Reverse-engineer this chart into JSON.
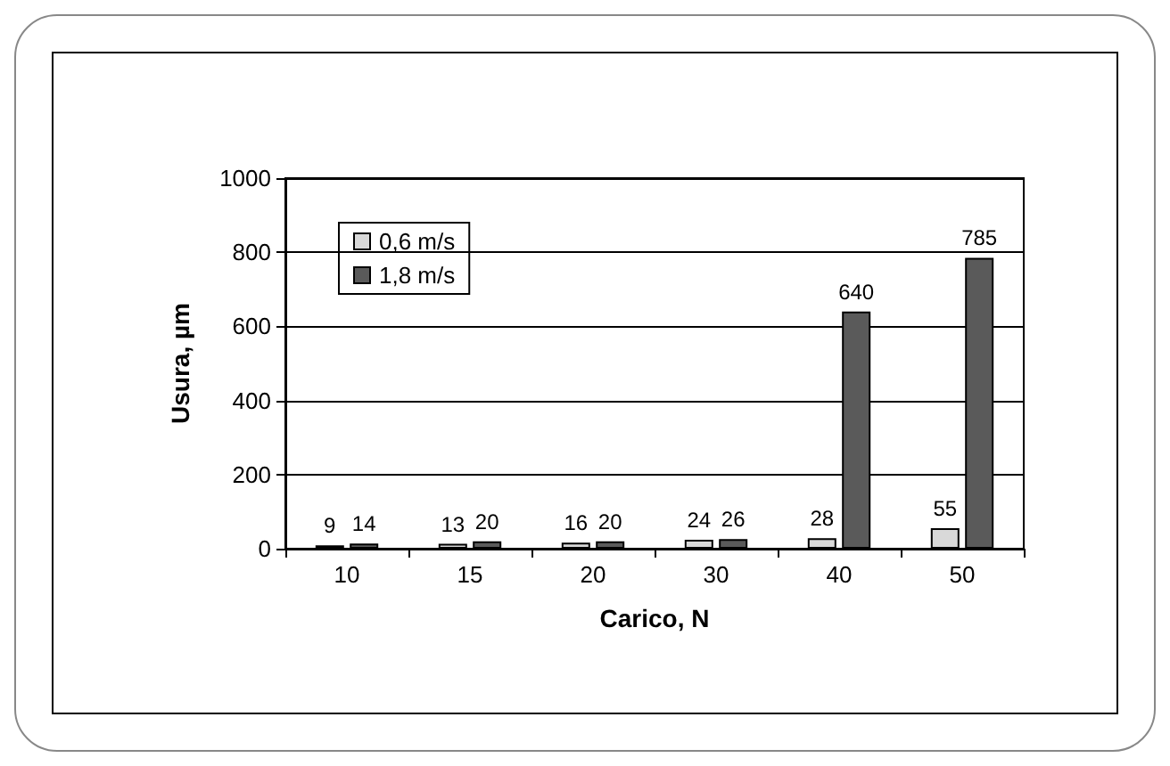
{
  "chart_data": {
    "type": "bar",
    "xlabel": "Carico, N",
    "ylabel": "Usura, µm",
    "categories": [
      "10",
      "15",
      "20",
      "30",
      "40",
      "50"
    ],
    "series": [
      {
        "name": "0,6 m/s",
        "color": "#d9d9d9",
        "values": [
          9,
          13,
          16,
          24,
          28,
          55
        ]
      },
      {
        "name": "1,8 m/s",
        "color": "#5a5a5a",
        "values": [
          14,
          20,
          20,
          26,
          640,
          785
        ]
      }
    ],
    "ylim": [
      0,
      1000
    ],
    "yticks": [
      0,
      200,
      400,
      600,
      800,
      1000
    ],
    "grid": "y",
    "legend": "top left",
    "data_labels": true
  }
}
